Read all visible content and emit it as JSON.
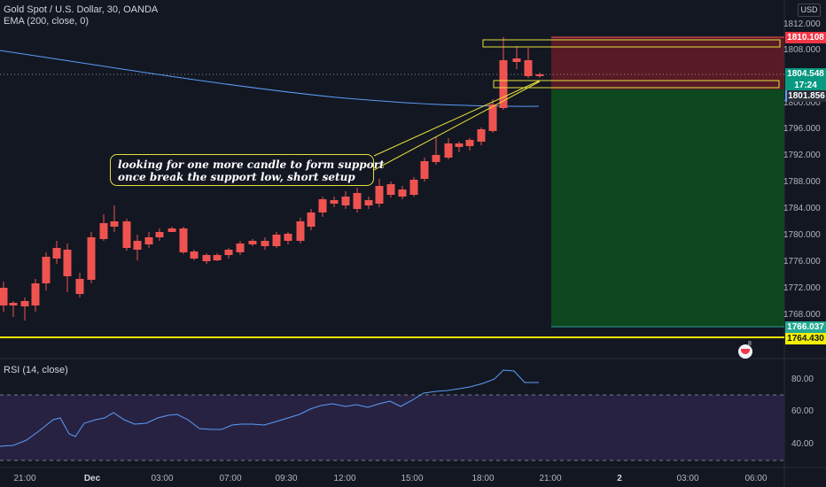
{
  "header": {
    "symbol_line": "Gold Spot / U.S. Dollar, 30, OANDA",
    "indicator_line": "EMA (200, close, 0)",
    "currency_button": "USD"
  },
  "annotation": {
    "line1": "looking for one more candle to form support",
    "line2": "once break the support low, short setup"
  },
  "price_axis": {
    "ticks": [
      "1812.000",
      "1808.000",
      "1800.000",
      "1796.000",
      "1792.000",
      "1788.000",
      "1784.000",
      "1780.000",
      "1776.000",
      "1772.000",
      "1768.000"
    ],
    "tags": {
      "stop": "1810.108",
      "current_price": "1804.548",
      "countdown": "17:24",
      "ema_value": "1801.856",
      "target": "1766.037",
      "horizontal_line": "1764.430"
    }
  },
  "rsi": {
    "title": "RSI (14, close)",
    "ticks": [
      "80.00",
      "60.00",
      "40.00"
    ]
  },
  "time_axis": {
    "labels": [
      "21:00",
      "Dec",
      "03:00",
      "07:00",
      "09:30",
      "12:00",
      "15:00",
      "18:00",
      "21:00",
      "2",
      "03:00",
      "06:00"
    ]
  },
  "colors": {
    "background": "#131722",
    "bull": "#26a69a",
    "bear": "#ef5350",
    "ema": "#5b9cf6",
    "annotation_border": "#e5e03a",
    "stop_zone": "#5c1b27",
    "target_zone": "#0d4a1e",
    "rsi_line": "#5b9cf6",
    "rsi_band": "#2a2346"
  },
  "icons": {
    "logo": "tradingview-badge-icon"
  }
}
